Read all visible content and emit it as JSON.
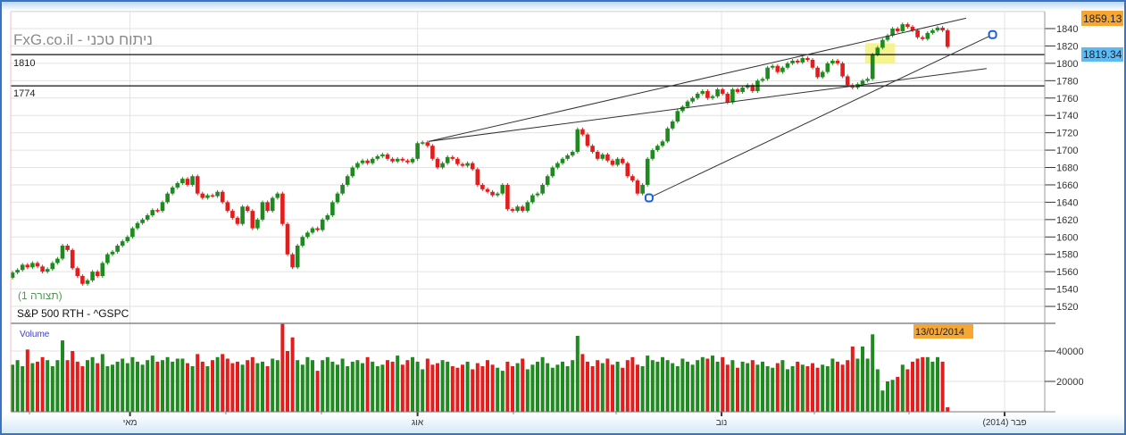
{
  "header": {
    "watermark": "FxG.co.il - ניתוח טכני",
    "pattern_label": "(תצורה 1)",
    "instrument": "S&P 500 RTH - ^GSPC",
    "volume_label": "Volume"
  },
  "levels": {
    "level_1810": "1810",
    "level_1774": "1774",
    "last_high_badge": "1859.13",
    "cursor_price_badge": "1819.34",
    "cursor_date_badge": "13/01/2014"
  },
  "colors": {
    "up": "#1f8a1f",
    "down": "#e31c1c",
    "badge_orange": "#f7a632",
    "badge_blue": "#5bbcf5",
    "highlight": "#f5f27a",
    "marker": "#1a5fd0",
    "watermark": "#8a8a8a",
    "pattern_label": "#4f9a4f",
    "volume_label": "#3a3fc0"
  },
  "chart_data": [
    {
      "type": "candlestick",
      "title": "S&P 500 RTH - ^GSPC",
      "ylim": [
        1510,
        1860
      ],
      "yticks": [
        1520,
        1540,
        1560,
        1580,
        1600,
        1620,
        1640,
        1660,
        1680,
        1700,
        1720,
        1740,
        1760,
        1780,
        1800,
        1820,
        1840
      ],
      "xticks": [
        {
          "label": "מאי",
          "bar": 23.5
        },
        {
          "label": "אוג",
          "bar": 81
        },
        {
          "label": "נוב",
          "bar": 141.8
        },
        {
          "label": "פבר (2014)",
          "bar": 198.4
        }
      ],
      "grid": true,
      "close": [
        1559,
        1562,
        1568,
        1565,
        1570,
        1566,
        1560,
        1563,
        1570,
        1575,
        1590,
        1585,
        1564,
        1555,
        1546,
        1550,
        1560,
        1555,
        1570,
        1580,
        1583,
        1590,
        1595,
        1600,
        1610,
        1616,
        1620,
        1625,
        1631,
        1630,
        1640,
        1650,
        1657,
        1662,
        1667,
        1660,
        1670,
        1650,
        1645,
        1648,
        1647,
        1652,
        1640,
        1630,
        1622,
        1615,
        1635,
        1630,
        1610,
        1620,
        1640,
        1630,
        1645,
        1650,
        1615,
        1580,
        1565,
        1590,
        1600,
        1605,
        1610,
        1608,
        1620,
        1625,
        1640,
        1650,
        1660,
        1670,
        1680,
        1685,
        1688,
        1685,
        1690,
        1693,
        1695,
        1690,
        1687,
        1690,
        1688,
        1686,
        1690,
        1708,
        1709,
        1705,
        1690,
        1680,
        1685,
        1692,
        1690,
        1684,
        1682,
        1685,
        1678,
        1660,
        1655,
        1652,
        1648,
        1650,
        1660,
        1632,
        1630,
        1635,
        1630,
        1640,
        1648,
        1650,
        1660,
        1670,
        1680,
        1685,
        1690,
        1694,
        1698,
        1724,
        1718,
        1705,
        1698,
        1690,
        1695,
        1688,
        1683,
        1690,
        1685,
        1670,
        1665,
        1650,
        1660,
        1690,
        1700,
        1705,
        1710,
        1725,
        1733,
        1745,
        1750,
        1756,
        1760,
        1765,
        1768,
        1760,
        1762,
        1770,
        1765,
        1755,
        1770,
        1767,
        1772,
        1775,
        1768,
        1780,
        1782,
        1795,
        1797,
        1790,
        1795,
        1800,
        1803,
        1801,
        1806,
        1804,
        1795,
        1784,
        1790,
        1800,
        1803,
        1800,
        1785,
        1775,
        1772,
        1776,
        1780,
        1782,
        1810,
        1818,
        1827,
        1832,
        1840,
        1837,
        1845,
        1842,
        1838,
        1830,
        1828,
        1835,
        1838,
        1841,
        1838,
        1819
      ],
      "first_open": 1553,
      "trendlines": [
        {
          "from": [
            83.2,
            1710
          ],
          "to": [
            190.7,
            1852
          ]
        },
        {
          "from": [
            83.2,
            1710
          ],
          "to": [
            194.8,
            1794
          ]
        },
        {
          "from": [
            127.3,
            1645
          ],
          "to": [
            196.0,
            1833
          ]
        }
      ],
      "horizontal_levels": [
        1810,
        1774
      ],
      "markers": [
        [
          127.3,
          1645
        ],
        [
          196.0,
          1833
        ]
      ],
      "highlight_zone": {
        "bars": [
          170.5,
          176.5
        ],
        "prices": [
          1800,
          1819
        ]
      }
    },
    {
      "type": "bar",
      "title": "Volume",
      "ylim": [
        0,
        60000
      ],
      "yticks": [
        20000,
        40000
      ],
      "values": [
        31000,
        34000,
        30000,
        41000,
        32000,
        33000,
        36000,
        34000,
        30000,
        34000,
        47000,
        34000,
        40000,
        33000,
        30000,
        34000,
        36000,
        32000,
        38000,
        30000,
        31000,
        33000,
        35000,
        32000,
        36000,
        33000,
        31000,
        34000,
        37000,
        33000,
        34000,
        36000,
        33000,
        35000,
        35000,
        32000,
        30000,
        38000,
        33000,
        30000,
        34000,
        36000,
        38000,
        35000,
        32000,
        33000,
        31000,
        34000,
        36000,
        32000,
        33000,
        30000,
        35000,
        34000,
        58000,
        40000,
        49000,
        34000,
        31000,
        36000,
        34000,
        27000,
        34000,
        36000,
        33000,
        31000,
        35000,
        30000,
        33000,
        34000,
        32000,
        36000,
        33000,
        30000,
        31000,
        34000,
        33000,
        37000,
        31000,
        34000,
        36000,
        33000,
        28000,
        35000,
        31000,
        32000,
        34000,
        33000,
        30000,
        29000,
        31000,
        33000,
        28000,
        32000,
        30000,
        34000,
        31000,
        29000,
        27000,
        33000,
        30000,
        32000,
        35000,
        28000,
        31000,
        33000,
        36000,
        32000,
        29000,
        31000,
        33000,
        30000,
        34000,
        50000,
        38000,
        33000,
        30000,
        34000,
        32000,
        35000,
        31000,
        33000,
        29000,
        34000,
        36000,
        31000,
        30000,
        37000,
        34000,
        33000,
        36000,
        34000,
        32000,
        30000,
        35000,
        33000,
        31000,
        34000,
        36000,
        35000,
        37000,
        33000,
        36000,
        31000,
        34000,
        29000,
        33000,
        32000,
        34000,
        31000,
        33000,
        30000,
        29000,
        32000,
        34000,
        28000,
        30000,
        33000,
        31000,
        30000,
        32000,
        29000,
        31000,
        30000,
        35000,
        33000,
        31000,
        34000,
        43000,
        35000,
        43000,
        35000,
        51000,
        28000,
        14000,
        20000,
        21000,
        23000,
        31000,
        28000,
        33000,
        35000,
        36000,
        36000,
        33000,
        36000,
        33000,
        3000
      ]
    }
  ]
}
